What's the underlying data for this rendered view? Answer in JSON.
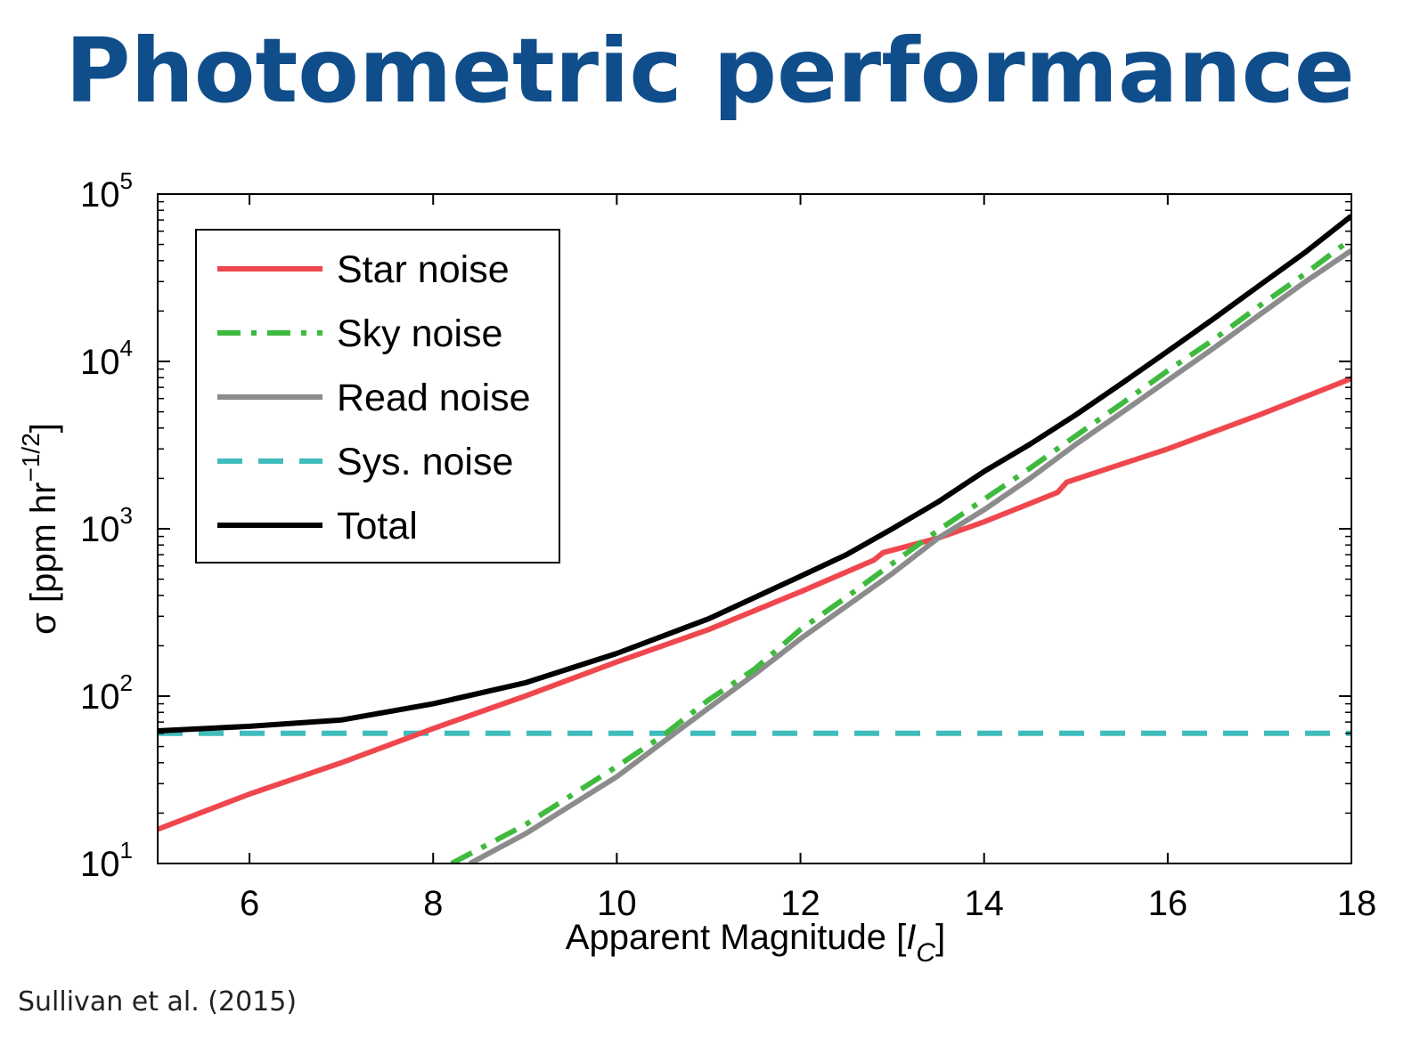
{
  "title": "Photometric performance",
  "citation": "Sullivan et al. (2015)",
  "chart_data": {
    "type": "line",
    "xlabel": "Apparent Magnitude [I_C]",
    "xlabel_main": "Apparent Magnitude [",
    "xlabel_var": "I",
    "xlabel_sub": "C",
    "xlabel_end": "]",
    "ylabel": "σ [ppm hr^-1/2]",
    "ylabel_main": "σ [ppm hr",
    "ylabel_sup": "−1/2",
    "ylabel_end": "]",
    "xlim": [
      5,
      18
    ],
    "ylim": [
      10,
      100000
    ],
    "yscale": "log",
    "xticks": [
      6,
      8,
      10,
      12,
      14,
      16,
      18
    ],
    "xtick_labels": [
      "6",
      "8",
      "10",
      "12",
      "14",
      "16",
      "18"
    ],
    "yticks": [
      10,
      100,
      1000,
      10000,
      100000
    ],
    "ytick_labels": [
      {
        "base": "10",
        "exp": "1"
      },
      {
        "base": "10",
        "exp": "2"
      },
      {
        "base": "10",
        "exp": "3"
      },
      {
        "base": "10",
        "exp": "4"
      },
      {
        "base": "10",
        "exp": "5"
      }
    ],
    "grid": false,
    "legend_position": "top-left",
    "series": [
      {
        "name": "Star noise",
        "color": "#f0474e",
        "style": "solid",
        "x": [
          5,
          6,
          7,
          8,
          9,
          10,
          11,
          12,
          12.8,
          12.9,
          13.5,
          14,
          14.8,
          14.9,
          16,
          17,
          18
        ],
        "y": [
          16,
          26,
          40,
          64,
          100,
          160,
          250,
          420,
          650,
          720,
          880,
          1100,
          1650,
          1900,
          3000,
          4800,
          7900
        ]
      },
      {
        "name": "Sky noise",
        "color": "#3fba3f",
        "style": "dashdot",
        "x": [
          8.2,
          9,
          10,
          10.5,
          11,
          11.5,
          12,
          12.5,
          13,
          13.5,
          14,
          14.5,
          15,
          15.5,
          16,
          16.5,
          17,
          17.5,
          18
        ],
        "y": [
          10,
          17,
          38,
          58,
          95,
          145,
          250,
          390,
          620,
          980,
          1500,
          2300,
          3600,
          5600,
          8800,
          13500,
          21500,
          33500,
          54000
        ]
      },
      {
        "name": "Read noise",
        "color": "#8c8c8c",
        "style": "solid",
        "x": [
          8.4,
          9,
          10,
          10.5,
          11,
          11.5,
          12,
          12.5,
          13,
          13.5,
          14,
          14.5,
          15,
          15.5,
          16,
          16.5,
          17,
          17.5,
          18
        ],
        "y": [
          10,
          15,
          33,
          53,
          85,
          135,
          220,
          345,
          540,
          880,
          1300,
          2000,
          3200,
          4950,
          7700,
          12000,
          19000,
          30000,
          46000
        ]
      },
      {
        "name": "Sys. noise",
        "color": "#3fbcbc",
        "style": "dashed",
        "x": [
          5,
          18
        ],
        "y": [
          60,
          60
        ]
      },
      {
        "name": "Total",
        "color": "#000000",
        "style": "solid",
        "x": [
          5,
          6,
          7,
          8,
          9,
          10,
          11,
          12,
          12.5,
          13,
          13.5,
          14,
          14.5,
          15,
          15.5,
          16,
          16.5,
          17,
          17.5,
          18
        ],
        "y": [
          62,
          66,
          72,
          90,
          120,
          180,
          290,
          520,
          700,
          1000,
          1450,
          2200,
          3200,
          4800,
          7400,
          11500,
          18000,
          28500,
          45000,
          74000
        ]
      }
    ]
  }
}
